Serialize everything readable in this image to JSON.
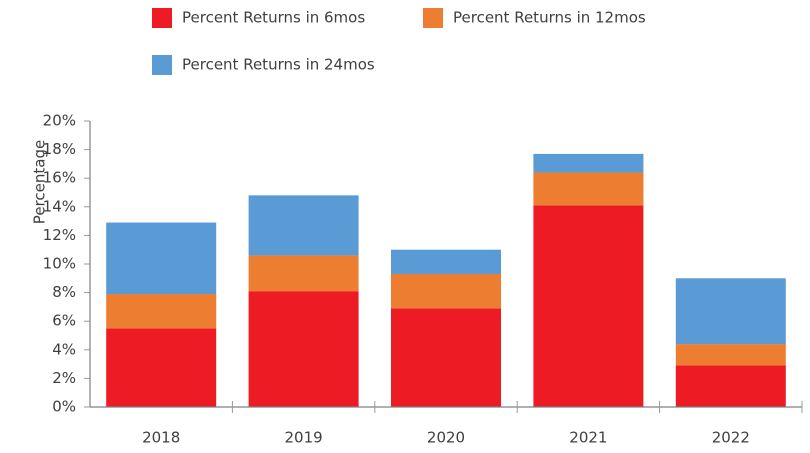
{
  "chart_data": {
    "type": "stacked_bar",
    "y_label": "Percentage",
    "categories": [
      "2018",
      "2019",
      "2020",
      "2021",
      "2022"
    ],
    "series": [
      {
        "name": "Percent Returns in 6mos",
        "color": "#ed1c24",
        "values": [
          5.5,
          8.1,
          6.9,
          14.1,
          2.9
        ]
      },
      {
        "name": "Percent Returns in 12mos",
        "color": "#ed7d31",
        "values": [
          2.4,
          2.5,
          2.4,
          2.3,
          1.5
        ]
      },
      {
        "name": "Percent Returns in 24mos",
        "color": "#5b9bd5",
        "values": [
          5.0,
          4.2,
          1.7,
          1.3,
          4.6
        ]
      }
    ],
    "ylim": [
      0,
      20
    ],
    "yticks": [
      {
        "value": 0,
        "label": "0%"
      },
      {
        "value": 2,
        "label": "2%"
      },
      {
        "value": 4,
        "label": "4%"
      },
      {
        "value": 6,
        "label": "6%"
      },
      {
        "value": 8,
        "label": "8%"
      },
      {
        "value": 10,
        "label": "10%"
      },
      {
        "value": 12,
        "label": "12%"
      },
      {
        "value": 14,
        "label": "14%"
      },
      {
        "value": 16,
        "label": "16%"
      },
      {
        "value": 18,
        "label": "18%"
      },
      {
        "value": 20,
        "label": "20%"
      }
    ],
    "legend": "top"
  }
}
